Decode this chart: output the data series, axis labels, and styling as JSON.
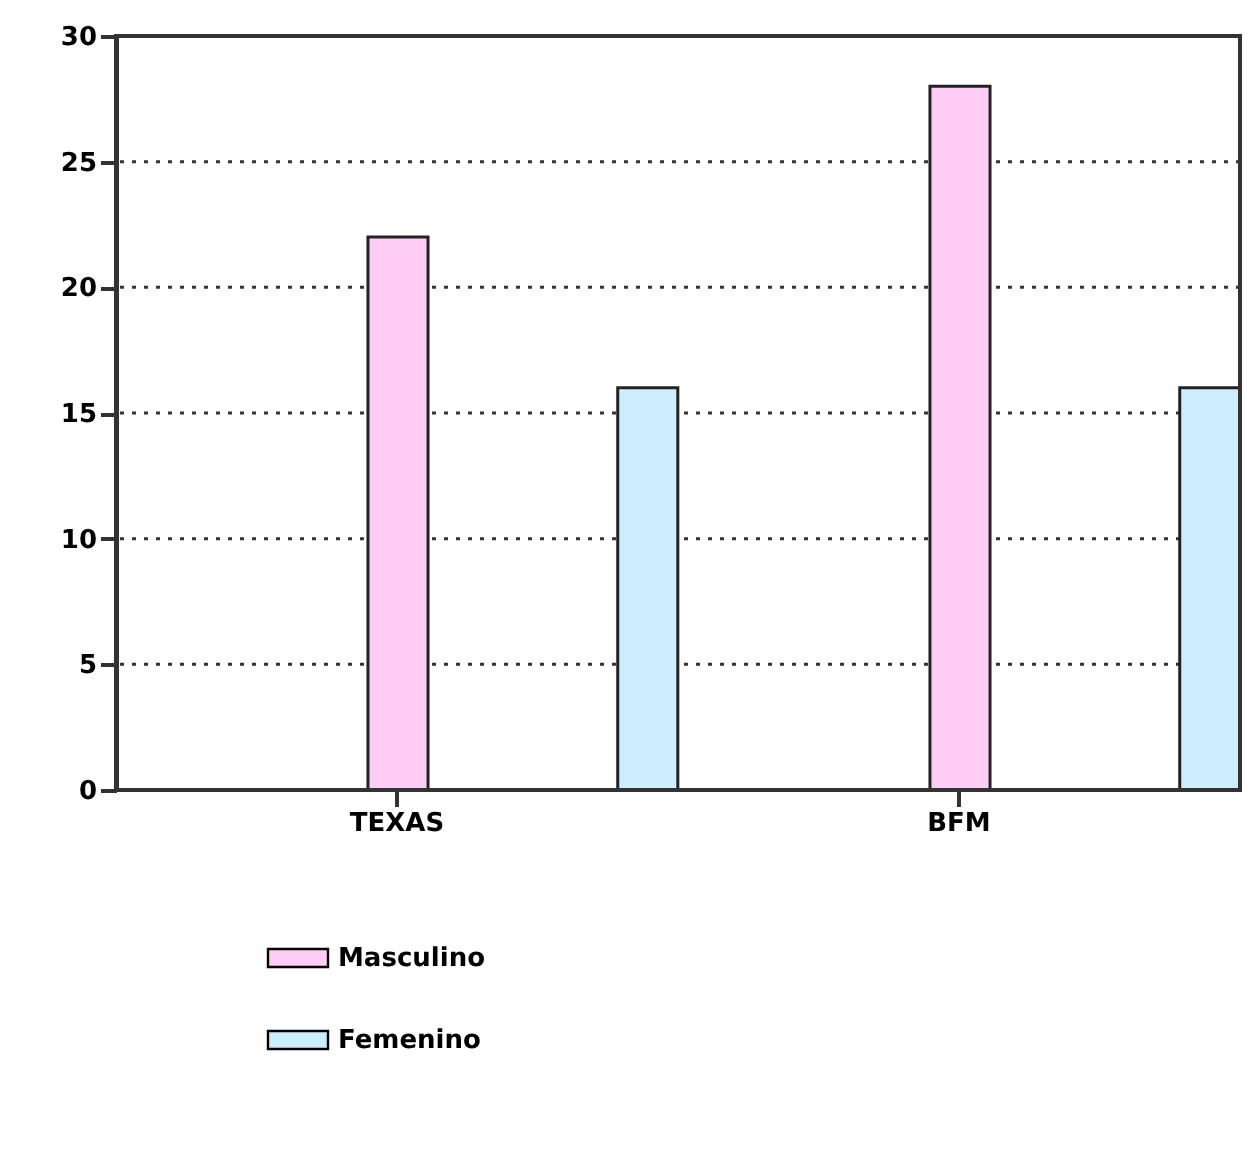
{
  "chart_data": {
    "type": "bar",
    "categories": [
      "TEXAS",
      "BFM"
    ],
    "series": [
      {
        "name": "Masculino",
        "color": "#ffccf5",
        "values": [
          22,
          28
        ]
      },
      {
        "name": "Femenino",
        "color": "#cceeff",
        "values": [
          16,
          16
        ]
      }
    ],
    "ylim": [
      0,
      30
    ],
    "yticks": [
      0,
      5,
      10,
      15,
      20,
      25,
      30
    ],
    "grid": "y",
    "legend": "bottom left"
  }
}
